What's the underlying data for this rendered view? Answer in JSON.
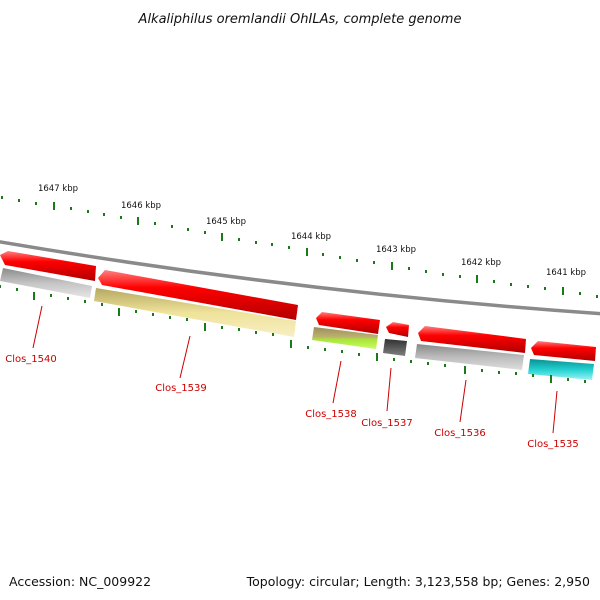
{
  "title": "Alkaliphilus oremlandii OhILAs, complete genome",
  "footer": {
    "accession": "Accession: NC_009922",
    "summary": "Topology: circular; Length: 3,123,558 bp; Genes: 2,950"
  },
  "colors": {
    "backbone": "#8a8a8a",
    "ticks": "#1a7a1a",
    "cds": "#ee0000",
    "label": "#cc0000"
  },
  "scale_labels": [
    "1647 kbp",
    "1646 kbp",
    "1645 kbp",
    "1644 kbp",
    "1643 kbp",
    "1642 kbp",
    "1641 kbp"
  ],
  "genes": [
    {
      "name": "Clos_1540",
      "color": "#b8b8b8"
    },
    {
      "name": "Clos_1539",
      "color": "#efe29a"
    },
    {
      "name": "Clos_1538",
      "color": "#a8e23a"
    },
    {
      "name": "Clos_1537",
      "color": "#606060"
    },
    {
      "name": "Clos_1536",
      "color": "#b4b4b4"
    },
    {
      "name": "Clos_1535",
      "color": "#22d0d0"
    }
  ]
}
